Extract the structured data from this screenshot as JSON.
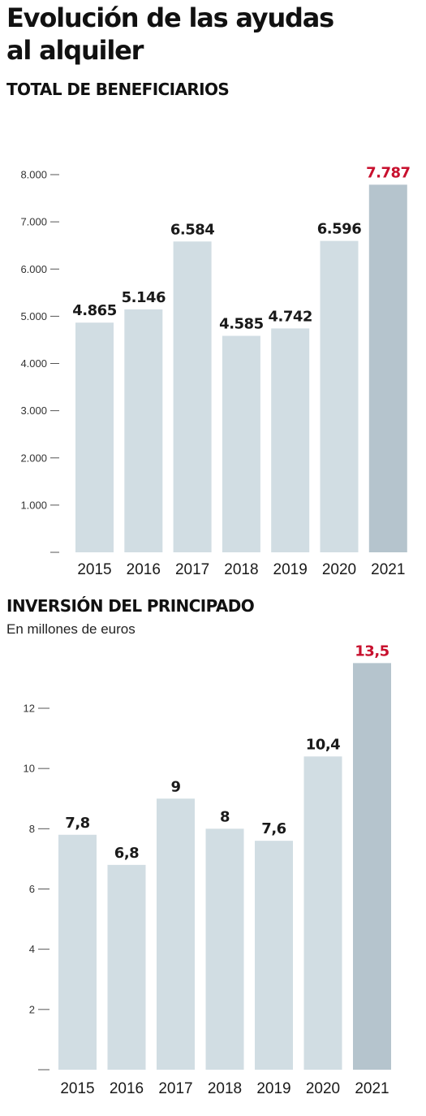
{
  "title": [
    "Evolución de las ayudas",
    "al alquiler"
  ],
  "colors": {
    "bar": "#d1dde3",
    "highlight_bar": "#b5c4cd",
    "highlight_label": "#c8102e",
    "label": "#1a1a1a",
    "axis": "#555555"
  },
  "chart_data": [
    {
      "type": "bar",
      "title": "TOTAL DE BENEFICIARIOS",
      "subtitle": "",
      "categories": [
        "2015",
        "2016",
        "2017",
        "2018",
        "2019",
        "2020",
        "2021"
      ],
      "values": [
        4865,
        5146,
        6584,
        4585,
        4742,
        6596,
        7787
      ],
      "value_labels": [
        "4.865",
        "5.146",
        "6.584",
        "4.585",
        "4.742",
        "6.596",
        "7.787"
      ],
      "highlight": "2021",
      "ylim": [
        0,
        8000
      ],
      "yticks": [
        0,
        1000,
        2000,
        3000,
        4000,
        5000,
        6000,
        7000,
        8000
      ],
      "ytick_labels": [
        "",
        "1.000",
        "2.000",
        "3.000",
        "4.000",
        "5.000",
        "6.000",
        "7.000",
        "8.000"
      ],
      "grid": false
    },
    {
      "type": "bar",
      "title": "INVERSIÓN DEL PRINCIPADO",
      "subtitle": "En millones de euros",
      "categories": [
        "2015",
        "2016",
        "2017",
        "2018",
        "2019",
        "2020",
        "2021"
      ],
      "values": [
        7.8,
        6.8,
        9,
        8,
        7.6,
        10.4,
        13.5
      ],
      "value_labels": [
        "7,8",
        "6,8",
        "9",
        "8",
        "7,6",
        "10,4",
        "13,5"
      ],
      "highlight": "2021",
      "ylim": [
        0,
        12
      ],
      "yticks": [
        0,
        2,
        4,
        6,
        8,
        10,
        12
      ],
      "ytick_labels": [
        "",
        "2",
        "4",
        "6",
        "8",
        "10",
        "12"
      ],
      "grid": false
    }
  ]
}
